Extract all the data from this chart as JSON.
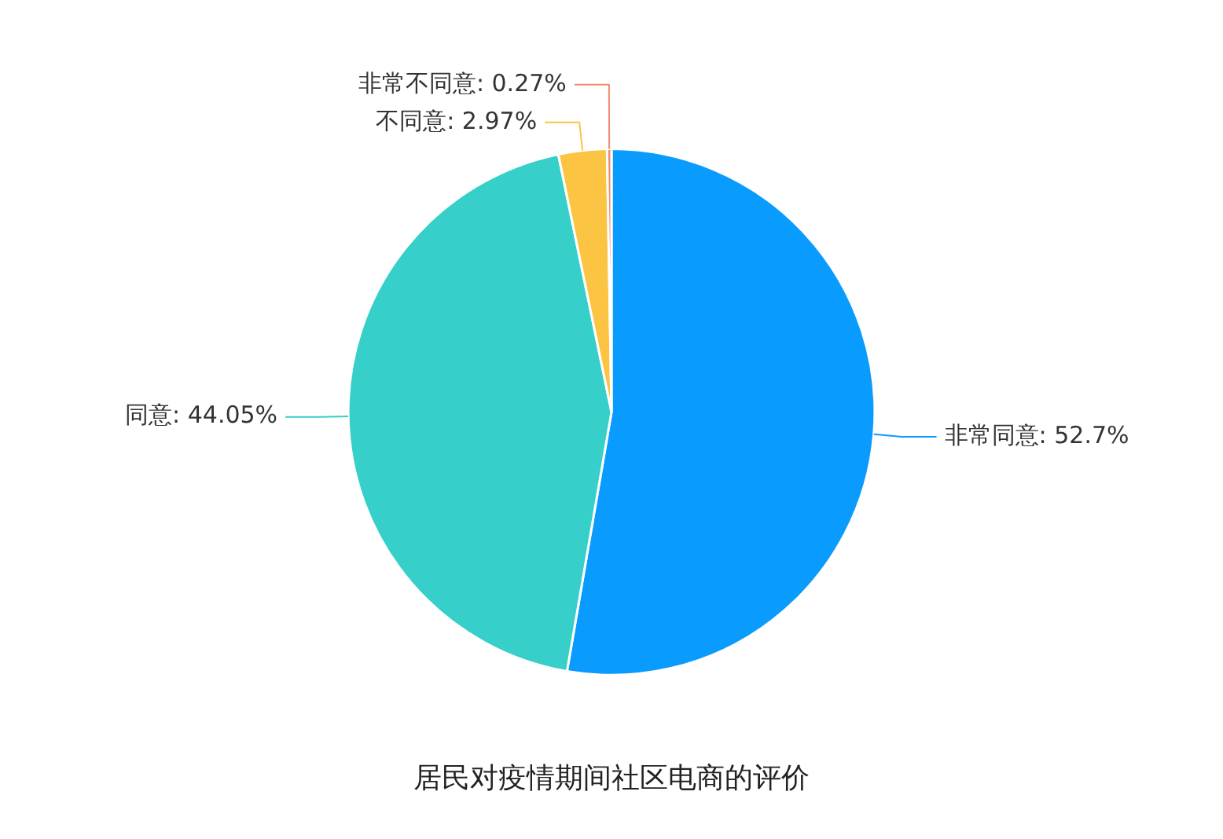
{
  "chart_data": {
    "type": "pie",
    "title": "居民对疫情期间社区电商的评价",
    "categories": [
      "非常同意",
      "同意",
      "不同意",
      "非常不同意"
    ],
    "values": [
      52.7,
      44.05,
      2.97,
      0.27
    ],
    "value_labels": [
      "52.7%",
      "44.05%",
      "2.97%",
      "0.27%"
    ],
    "colors": [
      "#0a9bff",
      "#36cfc9",
      "#fbc443",
      "#f08a6c"
    ],
    "legend": false
  }
}
